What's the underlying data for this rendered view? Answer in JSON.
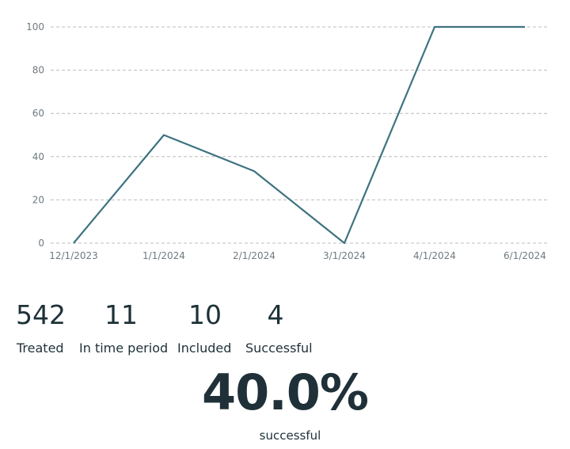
{
  "chart_data": {
    "type": "line",
    "categories": [
      "12/1/2023",
      "1/1/2024",
      "2/1/2024",
      "3/1/2024",
      "4/1/2024",
      "6/1/2024"
    ],
    "values": [
      0,
      50,
      33.3,
      0,
      100,
      100
    ],
    "yticks": [
      "0",
      "20",
      "40",
      "60",
      "80",
      "100"
    ],
    "ylim": [
      0,
      100
    ],
    "grid": true,
    "line_color": "#3e7380",
    "grid_color": "#bcbcbc",
    "title": "",
    "xlabel": "",
    "ylabel": ""
  },
  "stats": [
    {
      "value": "542",
      "label": "Treated"
    },
    {
      "value": "11",
      "label": "In time period"
    },
    {
      "value": "10",
      "label": "Included"
    },
    {
      "value": "4",
      "label": "Successful"
    }
  ],
  "summary": {
    "rate": "40.0%",
    "label": "successful"
  }
}
